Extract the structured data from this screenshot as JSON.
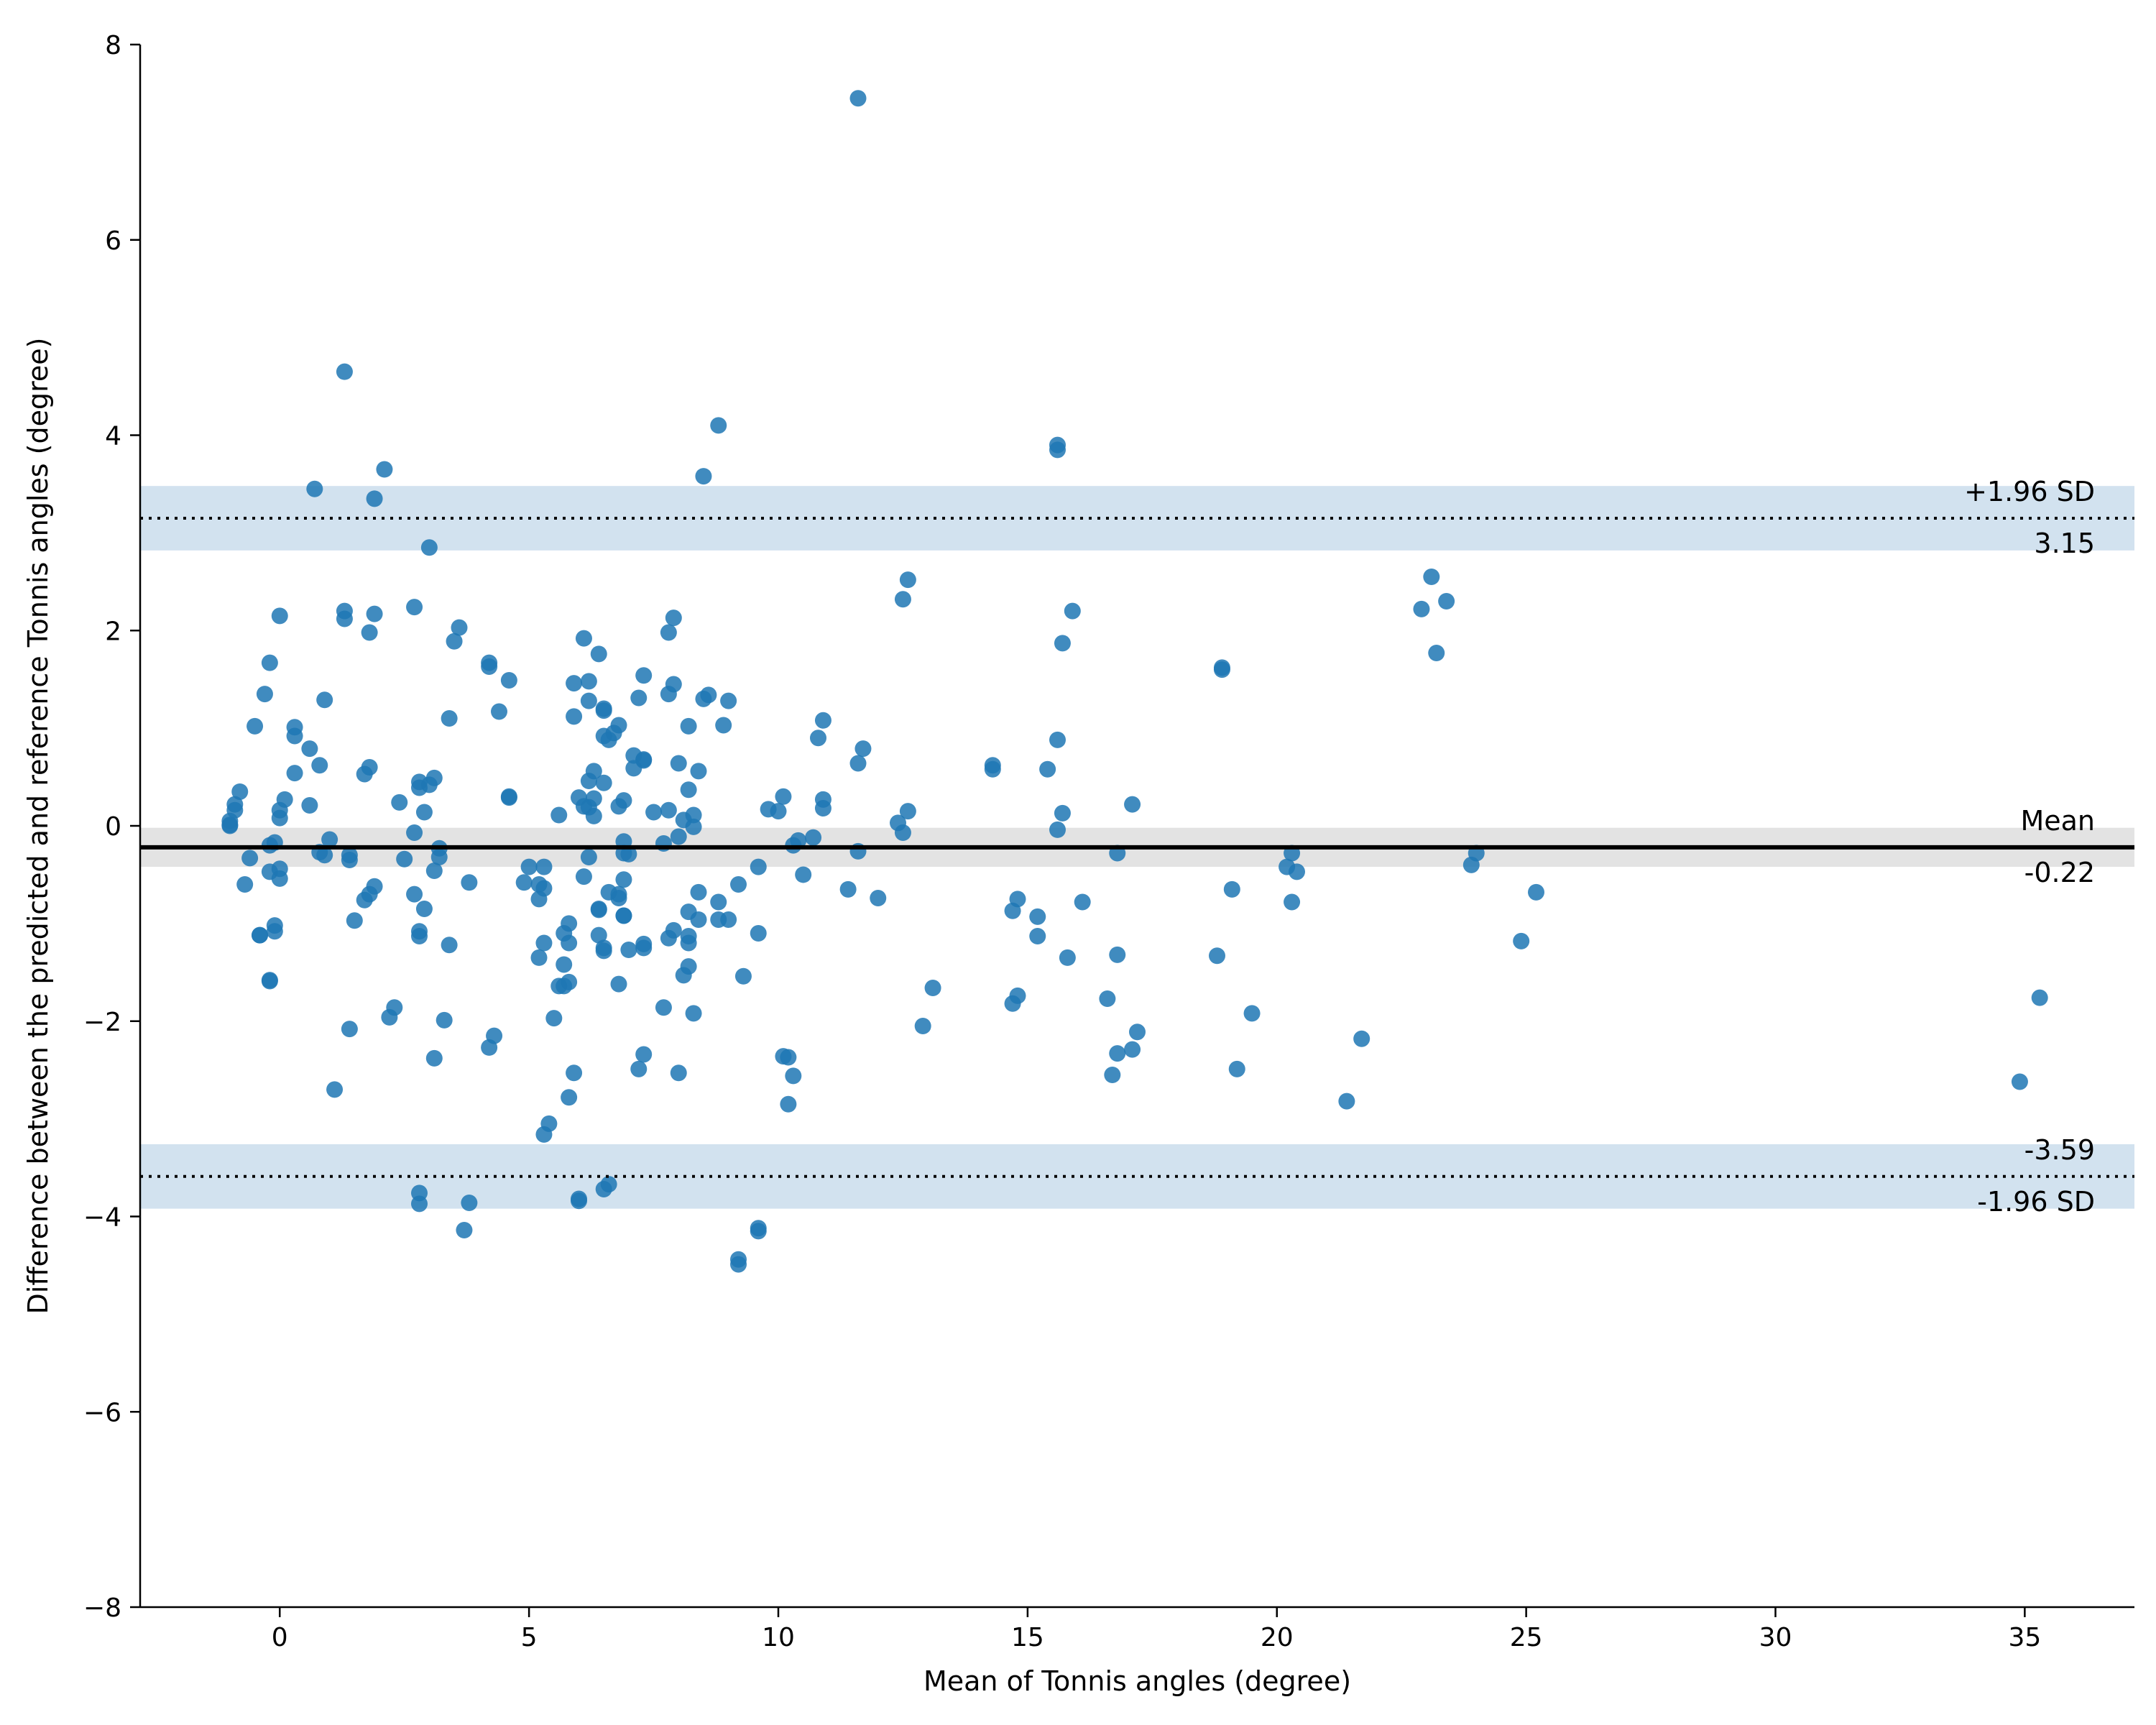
{
  "chart_data": {
    "type": "scatter",
    "title": "",
    "xlabel": "Mean of Tonnis angles (degree)",
    "ylabel": "Difference between the predicted and reference Tonnis angles (degree)",
    "xlim": [
      -2.8,
      37.2
    ],
    "ylim": [
      -8,
      8
    ],
    "x_ticks": [
      0,
      5,
      10,
      15,
      20,
      25,
      30,
      35
    ],
    "y_ticks": [
      -8,
      -6,
      -4,
      -2,
      0,
      2,
      4,
      6,
      8
    ],
    "x_tick_labels": [
      "0",
      "5",
      "10",
      "15",
      "20",
      "25",
      "30",
      "35"
    ],
    "y_tick_labels": [
      "−8",
      "−6",
      "−4",
      "−2",
      "0",
      "2",
      "4",
      "6",
      "8"
    ],
    "grid": false,
    "point_color": "#1f77b4",
    "mean": {
      "value": -0.22,
      "label": "Mean",
      "value_label": "-0.22",
      "band": [
        -0.42,
        -0.02
      ],
      "band_color": "#e3e3e3"
    },
    "upper_loa": {
      "value": 3.15,
      "label": "+1.96 SD",
      "value_label": "3.15",
      "band": [
        2.82,
        3.48
      ],
      "band_color": "#d2e2ef"
    },
    "lower_loa": {
      "value": -3.59,
      "label": "-1.96 SD",
      "value_label": "-3.59",
      "band": [
        -3.92,
        -3.26
      ],
      "band_color": "#d2e2ef"
    },
    "points": [
      [
        11.6,
        7.45
      ],
      [
        1.3,
        4.65
      ],
      [
        8.8,
        4.1
      ],
      [
        15.6,
        3.9
      ],
      [
        15.6,
        3.85
      ],
      [
        2.1,
        3.65
      ],
      [
        8.5,
        3.58
      ],
      [
        0.7,
        3.45
      ],
      [
        1.9,
        3.35
      ],
      [
        3.0,
        2.85
      ],
      [
        23.1,
        2.55
      ],
      [
        12.6,
        2.52
      ],
      [
        23.4,
        2.3
      ],
      [
        12.5,
        2.32
      ],
      [
        22.9,
        2.22
      ],
      [
        2.7,
        2.24
      ],
      [
        1.3,
        2.2
      ],
      [
        15.9,
        2.2
      ],
      [
        1.9,
        2.17
      ],
      [
        0.0,
        2.15
      ],
      [
        1.3,
        2.12
      ],
      [
        7.9,
        2.13
      ],
      [
        3.6,
        2.03
      ],
      [
        1.8,
        1.98
      ],
      [
        7.8,
        1.98
      ],
      [
        6.1,
        1.92
      ],
      [
        3.5,
        1.89
      ],
      [
        15.7,
        1.87
      ],
      [
        23.2,
        1.77
      ],
      [
        6.4,
        1.76
      ],
      [
        -0.2,
        1.67
      ],
      [
        4.2,
        1.67
      ],
      [
        4.2,
        1.63
      ],
      [
        18.9,
        1.62
      ],
      [
        18.9,
        1.6
      ],
      [
        7.3,
        1.54
      ],
      [
        4.6,
        1.49
      ],
      [
        5.9,
        1.46
      ],
      [
        6.2,
        1.48
      ],
      [
        7.9,
        1.45
      ],
      [
        -0.3,
        1.35
      ],
      [
        7.8,
        1.35
      ],
      [
        8.6,
        1.34
      ],
      [
        7.2,
        1.31
      ],
      [
        0.9,
        1.29
      ],
      [
        9.0,
        1.28
      ],
      [
        8.5,
        1.3
      ],
      [
        6.2,
        1.28
      ],
      [
        6.5,
        1.2
      ],
      [
        6.5,
        1.18
      ],
      [
        4.4,
        1.17
      ],
      [
        5.9,
        1.12
      ],
      [
        3.4,
        1.1
      ],
      [
        10.9,
        1.08
      ],
      [
        8.9,
        1.03
      ],
      [
        6.8,
        1.03
      ],
      [
        -0.5,
        1.02
      ],
      [
        0.3,
        1.01
      ],
      [
        8.2,
        1.02
      ],
      [
        6.7,
        0.95
      ],
      [
        0.3,
        0.92
      ],
      [
        10.8,
        0.9
      ],
      [
        6.5,
        0.92
      ],
      [
        6.6,
        0.88
      ],
      [
        15.6,
        0.88
      ],
      [
        0.6,
        0.79
      ],
      [
        11.7,
        0.79
      ],
      [
        7.1,
        0.72
      ],
      [
        7.3,
        0.68
      ],
      [
        7.3,
        0.67
      ],
      [
        8.0,
        0.64
      ],
      [
        11.6,
        0.64
      ],
      [
        0.8,
        0.62
      ],
      [
        14.3,
        0.62
      ],
      [
        14.3,
        0.58
      ],
      [
        1.8,
        0.6
      ],
      [
        15.4,
        0.58
      ],
      [
        7.1,
        0.59
      ],
      [
        8.4,
        0.56
      ],
      [
        6.3,
        0.56
      ],
      [
        0.3,
        0.54
      ],
      [
        1.7,
        0.53
      ],
      [
        3.1,
        0.49
      ],
      [
        2.8,
        0.45
      ],
      [
        6.2,
        0.46
      ],
      [
        6.5,
        0.44
      ],
      [
        3.0,
        0.42
      ],
      [
        2.8,
        0.39
      ],
      [
        8.2,
        0.37
      ],
      [
        -0.8,
        0.35
      ],
      [
        10.1,
        0.3
      ],
      [
        4.6,
        0.3
      ],
      [
        4.6,
        0.29
      ],
      [
        6.3,
        0.28
      ],
      [
        10.9,
        0.27
      ],
      [
        0.1,
        0.27
      ],
      [
        6.0,
        0.29
      ],
      [
        6.9,
        0.26
      ],
      [
        2.4,
        0.24
      ],
      [
        17.1,
        0.22
      ],
      [
        -0.9,
        0.22
      ],
      [
        0.6,
        0.21
      ],
      [
        6.8,
        0.2
      ],
      [
        -0.9,
        0.16
      ],
      [
        6.2,
        0.19
      ],
      [
        6.1,
        0.2
      ],
      [
        10.9,
        0.18
      ],
      [
        9.8,
        0.17
      ],
      [
        7.8,
        0.16
      ],
      [
        0.0,
        0.16
      ],
      [
        12.6,
        0.15
      ],
      [
        15.7,
        0.13
      ],
      [
        10.0,
        0.15
      ],
      [
        2.9,
        0.14
      ],
      [
        7.5,
        0.14
      ],
      [
        8.3,
        0.11
      ],
      [
        6.3,
        0.1
      ],
      [
        5.6,
        0.11
      ],
      [
        0.0,
        0.08
      ],
      [
        -1.0,
        0.05
      ],
      [
        8.1,
        0.06
      ],
      [
        -1.0,
        0.01
      ],
      [
        -1.0,
        0.0
      ],
      [
        12.4,
        0.03
      ],
      [
        8.3,
        -0.01
      ],
      [
        15.6,
        -0.04
      ],
      [
        2.7,
        -0.07
      ],
      [
        12.5,
        -0.07
      ],
      [
        8.0,
        -0.11
      ],
      [
        10.7,
        -0.12
      ],
      [
        1.0,
        -0.14
      ],
      [
        10.4,
        -0.15
      ],
      [
        -0.1,
        -0.17
      ],
      [
        6.9,
        -0.16
      ],
      [
        -0.2,
        -0.2
      ],
      [
        7.7,
        -0.18
      ],
      [
        10.3,
        -0.2
      ],
      [
        20.3,
        -0.28
      ],
      [
        0.8,
        -0.27
      ],
      [
        3.2,
        -0.23
      ],
      [
        0.9,
        -0.3
      ],
      [
        11.6,
        -0.26
      ],
      [
        16.8,
        -0.28
      ],
      [
        24.0,
        -0.28
      ],
      [
        1.4,
        -0.3
      ],
      [
        1.4,
        -0.35
      ],
      [
        2.5,
        -0.34
      ],
      [
        3.2,
        -0.32
      ],
      [
        6.2,
        -0.32
      ],
      [
        7.0,
        -0.29
      ],
      [
        -0.6,
        -0.33
      ],
      [
        6.9,
        -0.28
      ],
      [
        5.0,
        -0.42
      ],
      [
        5.3,
        -0.42
      ],
      [
        20.2,
        -0.42
      ],
      [
        23.9,
        -0.4
      ],
      [
        -0.2,
        -0.47
      ],
      [
        0.0,
        -0.44
      ],
      [
        9.6,
        -0.42
      ],
      [
        3.1,
        -0.46
      ],
      [
        20.4,
        -0.47
      ],
      [
        10.5,
        -0.5
      ],
      [
        6.1,
        -0.52
      ],
      [
        0.0,
        -0.54
      ],
      [
        6.9,
        -0.55
      ],
      [
        3.8,
        -0.58
      ],
      [
        4.9,
        -0.58
      ],
      [
        -0.7,
        -0.6
      ],
      [
        9.2,
        -0.6
      ],
      [
        5.2,
        -0.6
      ],
      [
        5.3,
        -0.64
      ],
      [
        1.9,
        -0.62
      ],
      [
        11.4,
        -0.65
      ],
      [
        19.1,
        -0.65
      ],
      [
        25.2,
        -0.68
      ],
      [
        8.4,
        -0.68
      ],
      [
        2.7,
        -0.7
      ],
      [
        1.8,
        -0.7
      ],
      [
        6.6,
        -0.68
      ],
      [
        6.8,
        -0.7
      ],
      [
        6.8,
        -0.74
      ],
      [
        5.2,
        -0.75
      ],
      [
        12.0,
        -0.74
      ],
      [
        14.8,
        -0.75
      ],
      [
        1.7,
        -0.76
      ],
      [
        8.8,
        -0.78
      ],
      [
        16.1,
        -0.78
      ],
      [
        20.3,
        -0.78
      ],
      [
        2.9,
        -0.85
      ],
      [
        6.4,
        -0.85
      ],
      [
        6.9,
        -0.92
      ],
      [
        14.7,
        -0.87
      ],
      [
        8.2,
        -0.88
      ],
      [
        15.2,
        -0.93
      ],
      [
        6.9,
        -0.92
      ],
      [
        6.4,
        -0.86
      ],
      [
        8.4,
        -0.96
      ],
      [
        9.0,
        -0.96
      ],
      [
        8.8,
        -0.96
      ],
      [
        1.5,
        -0.97
      ],
      [
        5.8,
        -1.0
      ],
      [
        -0.1,
        -1.02
      ],
      [
        7.9,
        -1.07
      ],
      [
        -0.1,
        -1.08
      ],
      [
        2.8,
        -1.08
      ],
      [
        5.7,
        -1.1
      ],
      [
        9.6,
        -1.1
      ],
      [
        -0.4,
        -1.12
      ],
      [
        -0.4,
        -1.12
      ],
      [
        6.4,
        -1.12
      ],
      [
        15.2,
        -1.13
      ],
      [
        2.8,
        -1.13
      ],
      [
        8.2,
        -1.13
      ],
      [
        7.8,
        -1.15
      ],
      [
        24.9,
        -1.18
      ],
      [
        8.2,
        -1.2
      ],
      [
        5.3,
        -1.2
      ],
      [
        5.8,
        -1.2
      ],
      [
        3.4,
        -1.22
      ],
      [
        7.3,
        -1.21
      ],
      [
        6.5,
        -1.25
      ],
      [
        7.3,
        -1.25
      ],
      [
        6.5,
        -1.28
      ],
      [
        7.0,
        -1.27
      ],
      [
        5.2,
        -1.35
      ],
      [
        16.8,
        -1.32
      ],
      [
        18.8,
        -1.33
      ],
      [
        15.8,
        -1.35
      ],
      [
        5.7,
        -1.42
      ],
      [
        8.2,
        -1.44
      ],
      [
        9.3,
        -1.54
      ],
      [
        8.1,
        -1.53
      ],
      [
        -0.2,
        -1.58
      ],
      [
        -0.2,
        -1.59
      ],
      [
        5.8,
        -1.6
      ],
      [
        6.8,
        -1.62
      ],
      [
        5.6,
        -1.64
      ],
      [
        5.7,
        -1.64
      ],
      [
        13.1,
        -1.66
      ],
      [
        14.8,
        -1.74
      ],
      [
        16.6,
        -1.77
      ],
      [
        35.3,
        -1.76
      ],
      [
        14.7,
        -1.82
      ],
      [
        7.7,
        -1.86
      ],
      [
        2.3,
        -1.86
      ],
      [
        19.5,
        -1.92
      ],
      [
        8.3,
        -1.92
      ],
      [
        2.2,
        -1.96
      ],
      [
        5.5,
        -1.97
      ],
      [
        3.3,
        -1.99
      ],
      [
        12.9,
        -2.05
      ],
      [
        1.4,
        -2.08
      ],
      [
        17.2,
        -2.11
      ],
      [
        4.3,
        -2.15
      ],
      [
        21.7,
        -2.18
      ],
      [
        4.2,
        -2.27
      ],
      [
        17.1,
        -2.29
      ],
      [
        16.8,
        -2.33
      ],
      [
        7.3,
        -2.34
      ],
      [
        10.1,
        -2.36
      ],
      [
        10.2,
        -2.37
      ],
      [
        3.1,
        -2.38
      ],
      [
        7.2,
        -2.49
      ],
      [
        19.2,
        -2.49
      ],
      [
        8.0,
        -2.53
      ],
      [
        5.9,
        -2.53
      ],
      [
        16.7,
        -2.55
      ],
      [
        10.3,
        -2.56
      ],
      [
        34.9,
        -2.62
      ],
      [
        1.1,
        -2.7
      ],
      [
        5.8,
        -2.78
      ],
      [
        21.4,
        -2.82
      ],
      [
        10.2,
        -2.85
      ],
      [
        5.4,
        -3.05
      ],
      [
        5.3,
        -3.16
      ],
      [
        6.6,
        -3.67
      ],
      [
        6.5,
        -3.72
      ],
      [
        2.8,
        -3.76
      ],
      [
        6.0,
        -3.82
      ],
      [
        6.0,
        -3.84
      ],
      [
        3.8,
        -3.86
      ],
      [
        2.8,
        -3.87
      ],
      [
        3.7,
        -4.14
      ],
      [
        9.6,
        -4.12
      ],
      [
        9.6,
        -4.15
      ],
      [
        9.2,
        -4.44
      ],
      [
        9.2,
        -4.49
      ]
    ]
  }
}
